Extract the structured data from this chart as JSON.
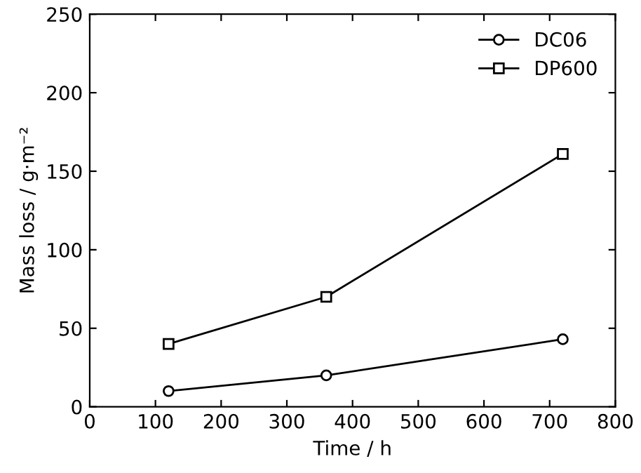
{
  "chart_data": {
    "type": "line",
    "xlabel": "Time / h",
    "ylabel": "Mass loss / g·m⁻²",
    "x": [
      120,
      360,
      720
    ],
    "series": [
      {
        "name": "DC06",
        "color": "#000000",
        "marker": "circle",
        "values": [
          10,
          20,
          43
        ]
      },
      {
        "name": "DP600",
        "color": "#000000",
        "marker": "square",
        "values": [
          40,
          70,
          161
        ]
      }
    ],
    "xlim": [
      0,
      800
    ],
    "xticks": [
      0,
      100,
      200,
      300,
      400,
      500,
      600,
      700,
      800
    ],
    "ylim": [
      0,
      250
    ],
    "yticks": [
      0,
      50,
      100,
      150,
      200,
      250
    ],
    "legend": "top right",
    "grid": false,
    "line_style": "solid"
  }
}
